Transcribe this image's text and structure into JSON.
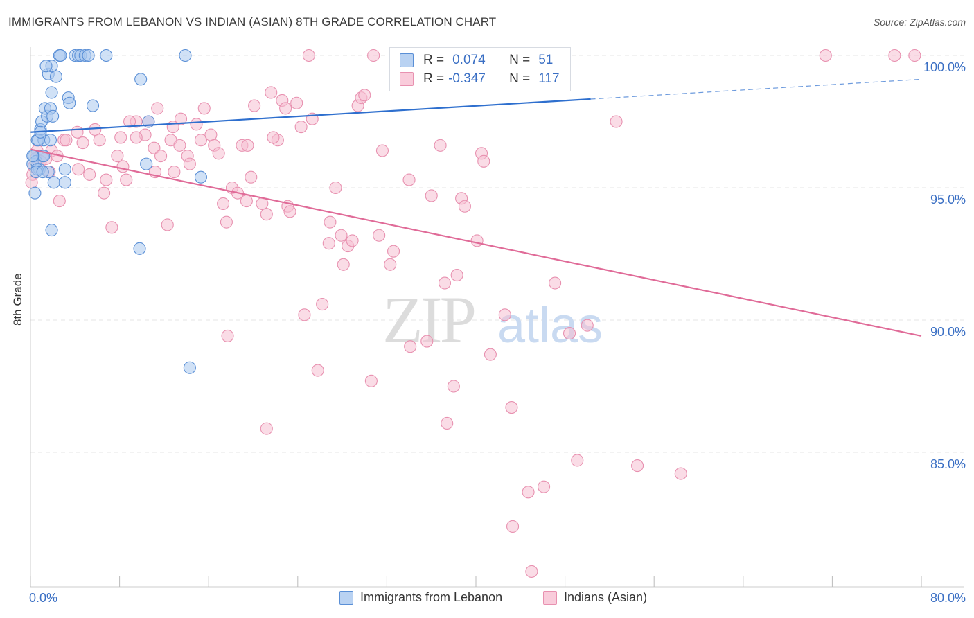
{
  "title": "IMMIGRANTS FROM LEBANON VS INDIAN (ASIAN) 8TH GRADE CORRELATION CHART",
  "source": "Source: ZipAtlas.com",
  "watermark": {
    "zip": "ZIP",
    "atlas": "atlas"
  },
  "legend": {
    "r_label": "R =",
    "n_label": "N =",
    "series1": {
      "r": "0.074",
      "n": "51"
    },
    "series2": {
      "r": "-0.347",
      "n": "117"
    }
  },
  "chart_data": {
    "type": "scatter",
    "title": "IMMIGRANTS FROM LEBANON VS INDIAN (ASIAN) 8TH GRADE CORRELATION CHART",
    "xlabel": "",
    "ylabel": "8th Grade",
    "xlim": [
      0,
      80
    ],
    "ylim": [
      80,
      100
    ],
    "x_tick_labels": [
      "0.0%",
      "80.0%"
    ],
    "y_tick_labels": [
      "100.0%",
      "95.0%",
      "90.0%",
      "85.0%"
    ],
    "y_ticks": [
      100,
      95,
      90,
      85
    ],
    "grid": true,
    "legend_position": "top-center",
    "colors": {
      "series1_fill": "#a9c8ef",
      "series1_stroke": "#5a8fd6",
      "series1_line": "#2e6fce",
      "series2_fill": "#f6bfd1",
      "series2_stroke": "#e891b0",
      "series2_line": "#e06b98",
      "axis_text": "#3a6fc4",
      "grid": "#e4e4e4"
    },
    "series": [
      {
        "name": "Immigrants from Lebanon",
        "r": 0.074,
        "n": 51,
        "trend": {
          "x0": 0,
          "y0": 97.1,
          "x1": 50.3,
          "y1": 98.35,
          "dash_x1": 80,
          "dash_y1": 99.1
        },
        "points": [
          [
            0.2,
            95.9
          ],
          [
            0.3,
            96.2
          ],
          [
            0.5,
            96.0
          ],
          [
            0.6,
            96.8
          ],
          [
            0.8,
            95.7
          ],
          [
            0.4,
            94.8
          ],
          [
            0.9,
            97.2
          ],
          [
            1.0,
            97.5
          ],
          [
            1.2,
            96.8
          ],
          [
            1.1,
            96.2
          ],
          [
            1.5,
            97.7
          ],
          [
            1.3,
            98.0
          ],
          [
            1.8,
            98.0
          ],
          [
            2.0,
            97.7
          ],
          [
            1.6,
            99.3
          ],
          [
            1.9,
            99.6
          ],
          [
            1.4,
            99.6
          ],
          [
            2.3,
            99.2
          ],
          [
            1.9,
            98.6
          ],
          [
            3.4,
            98.4
          ],
          [
            3.5,
            98.2
          ],
          [
            2.6,
            100.0
          ],
          [
            2.7,
            100.0
          ],
          [
            4.0,
            100.0
          ],
          [
            4.3,
            100.0
          ],
          [
            4.5,
            100.0
          ],
          [
            4.9,
            100.0
          ],
          [
            5.2,
            100.0
          ],
          [
            6.8,
            100.0
          ],
          [
            13.9,
            100.0
          ],
          [
            9.9,
            99.1
          ],
          [
            5.6,
            98.1
          ],
          [
            10.6,
            97.5
          ],
          [
            3.1,
            95.7
          ],
          [
            3.1,
            95.2
          ],
          [
            1.6,
            95.6
          ],
          [
            2.1,
            95.2
          ],
          [
            10.4,
            95.9
          ],
          [
            15.3,
            95.4
          ],
          [
            1.9,
            93.4
          ],
          [
            9.8,
            92.7
          ],
          [
            14.3,
            88.2
          ],
          [
            0.6,
            95.7
          ],
          [
            0.7,
            96.8
          ],
          [
            0.9,
            97.1
          ],
          [
            1.2,
            96.2
          ],
          [
            0.5,
            95.6
          ],
          [
            0.2,
            96.2
          ],
          [
            1.1,
            95.6
          ],
          [
            1.8,
            96.8
          ],
          [
            44.1,
            100.0
          ]
        ]
      },
      {
        "name": "Indians (Asian)",
        "r": -0.347,
        "n": 117,
        "trend": {
          "x0": 0,
          "y0": 96.45,
          "x1": 80,
          "y1": 89.4
        },
        "points": [
          [
            0.6,
            96.4
          ],
          [
            1.4,
            96.1
          ],
          [
            1.7,
            95.6
          ],
          [
            2.6,
            94.5
          ],
          [
            3.0,
            96.8
          ],
          [
            4.2,
            97.1
          ],
          [
            4.7,
            96.7
          ],
          [
            4.3,
            95.7
          ],
          [
            5.3,
            95.5
          ],
          [
            5.8,
            97.2
          ],
          [
            6.2,
            96.8
          ],
          [
            6.6,
            94.8
          ],
          [
            6.8,
            95.3
          ],
          [
            7.3,
            93.5
          ],
          [
            7.8,
            96.2
          ],
          [
            8.1,
            96.9
          ],
          [
            8.6,
            95.3
          ],
          [
            8.3,
            95.8
          ],
          [
            9.5,
            97.5
          ],
          [
            10.3,
            97.0
          ],
          [
            10.6,
            97.5
          ],
          [
            11.1,
            96.5
          ],
          [
            11.4,
            98.0
          ],
          [
            11.7,
            96.2
          ],
          [
            12.3,
            93.6
          ],
          [
            12.6,
            96.8
          ],
          [
            12.9,
            95.6
          ],
          [
            13.5,
            97.6
          ],
          [
            14.1,
            96.2
          ],
          [
            14.3,
            95.9
          ],
          [
            14.9,
            97.4
          ],
          [
            15.3,
            96.8
          ],
          [
            15.6,
            98.0
          ],
          [
            16.2,
            97.0
          ],
          [
            16.5,
            96.6
          ],
          [
            16.9,
            96.3
          ],
          [
            17.3,
            94.4
          ],
          [
            17.6,
            93.7
          ],
          [
            18.1,
            95.0
          ],
          [
            18.6,
            94.8
          ],
          [
            19.0,
            96.6
          ],
          [
            19.5,
            96.6
          ],
          [
            19.4,
            94.5
          ],
          [
            19.8,
            95.4
          ],
          [
            20.1,
            98.1
          ],
          [
            20.8,
            94.4
          ],
          [
            21.2,
            94.0
          ],
          [
            21.6,
            98.6
          ],
          [
            22.2,
            96.8
          ],
          [
            22.6,
            98.3
          ],
          [
            22.9,
            98.0
          ],
          [
            23.1,
            94.3
          ],
          [
            23.3,
            94.1
          ],
          [
            23.9,
            98.2
          ],
          [
            24.3,
            97.3
          ],
          [
            24.6,
            90.2
          ],
          [
            25.3,
            97.6
          ],
          [
            25.8,
            88.1
          ],
          [
            26.2,
            90.6
          ],
          [
            26.8,
            92.9
          ],
          [
            26.9,
            93.7
          ],
          [
            27.4,
            95.0
          ],
          [
            27.9,
            93.2
          ],
          [
            28.1,
            92.1
          ],
          [
            28.5,
            92.8
          ],
          [
            28.9,
            93.0
          ],
          [
            29.4,
            98.1
          ],
          [
            29.7,
            98.4
          ],
          [
            30.0,
            98.5
          ],
          [
            30.6,
            87.7
          ],
          [
            31.3,
            93.2
          ],
          [
            31.6,
            96.4
          ],
          [
            32.3,
            92.1
          ],
          [
            32.6,
            92.6
          ],
          [
            34.0,
            95.3
          ],
          [
            34.1,
            89.0
          ],
          [
            35.6,
            89.2
          ],
          [
            36.0,
            94.7
          ],
          [
            36.8,
            96.6
          ],
          [
            37.2,
            91.4
          ],
          [
            37.4,
            86.1
          ],
          [
            38.0,
            87.5
          ],
          [
            38.3,
            91.7
          ],
          [
            38.7,
            94.6
          ],
          [
            39.0,
            94.3
          ],
          [
            40.1,
            93.0
          ],
          [
            40.5,
            96.3
          ],
          [
            40.7,
            96.0
          ],
          [
            41.3,
            88.7
          ],
          [
            42.6,
            90.2
          ],
          [
            43.2,
            86.7
          ],
          [
            43.3,
            82.2
          ],
          [
            44.7,
            83.5
          ],
          [
            45.0,
            80.5
          ],
          [
            46.1,
            83.7
          ],
          [
            47.1,
            91.4
          ],
          [
            48.4,
            89.5
          ],
          [
            49.1,
            84.7
          ],
          [
            50.0,
            89.8
          ],
          [
            52.6,
            97.5
          ],
          [
            54.5,
            84.5
          ],
          [
            58.4,
            84.2
          ],
          [
            25.0,
            100.0
          ],
          [
            30.8,
            100.0
          ],
          [
            47.2,
            100.0
          ],
          [
            71.4,
            100.0
          ],
          [
            77.6,
            100.0
          ],
          [
            79.4,
            100.0
          ],
          [
            21.2,
            85.9
          ],
          [
            17.7,
            89.4
          ],
          [
            0.2,
            95.5
          ],
          [
            0.5,
            96.1
          ],
          [
            0.3,
            95.8
          ],
          [
            0.9,
            96.0
          ],
          [
            1.9,
            96.4
          ],
          [
            2.4,
            96.2
          ],
          [
            3.2,
            96.8
          ],
          [
            0.1,
            95.2
          ],
          [
            8.9,
            97.5
          ],
          [
            9.5,
            96.9
          ],
          [
            11.2,
            95.6
          ],
          [
            12.8,
            97.3
          ],
          [
            13.4,
            96.6
          ],
          [
            21.8,
            96.9
          ]
        ]
      }
    ]
  }
}
